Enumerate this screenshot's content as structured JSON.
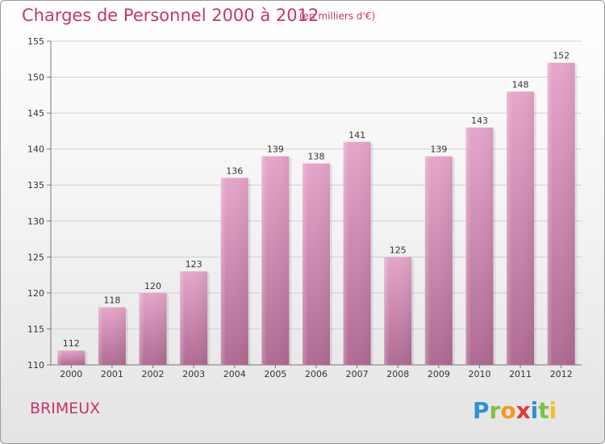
{
  "title": "Charges de Personnel 2000 à 2012",
  "subtitle": "(en milliers d'€)",
  "town": "BRIMEUX",
  "brand": "Proxiti",
  "colors": {
    "title": "#c8336e",
    "bar_top": "#e6a6cb",
    "bar_bottom": "#b06b93",
    "grid": "#cfcfcf"
  },
  "chart_data": {
    "type": "bar",
    "categories": [
      "2000",
      "2001",
      "2002",
      "2003",
      "2004",
      "2005",
      "2006",
      "2007",
      "2008",
      "2009",
      "2010",
      "2011",
      "2012"
    ],
    "values": [
      112,
      118,
      120,
      123,
      136,
      139,
      138,
      141,
      125,
      139,
      143,
      148,
      152
    ],
    "data_labels": [
      "112",
      "118",
      "120",
      "123",
      "136",
      "139",
      "138",
      "141",
      "125",
      "139",
      "143",
      "148",
      "152"
    ],
    "ylim": [
      110,
      155
    ],
    "yticks": [
      110,
      115,
      120,
      125,
      130,
      135,
      140,
      145,
      150,
      155
    ],
    "ytick_labels": [
      "110",
      "115",
      "120",
      "125",
      "130",
      "135",
      "140",
      "145",
      "150",
      "155"
    ],
    "grid": true,
    "legend": "none"
  }
}
